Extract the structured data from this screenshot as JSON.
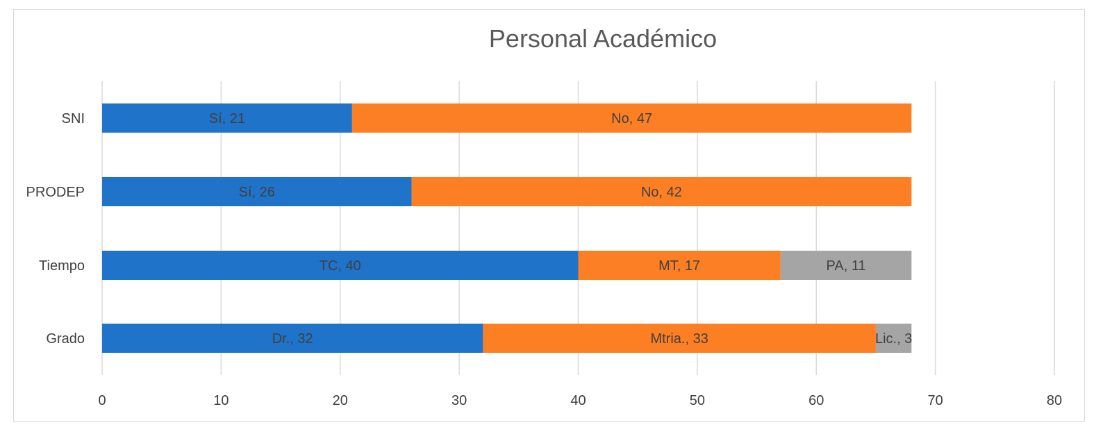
{
  "chart_data": {
    "type": "bar",
    "orientation": "horizontal",
    "stacked": true,
    "title": "Personal Académico",
    "xlabel": "",
    "ylabel": "",
    "xlim": [
      0,
      80
    ],
    "x_ticks": [
      0,
      10,
      20,
      30,
      40,
      50,
      60,
      70,
      80
    ],
    "grid": "vertical",
    "legend": "none",
    "colors": [
      "#1f73c8",
      "#fd7f24",
      "#a5a5a5"
    ],
    "categories": [
      "SNI",
      "PRODEP",
      "Tiempo",
      "Grado"
    ],
    "bars": [
      {
        "category": "SNI",
        "segments": [
          {
            "label": "Sí, 21",
            "value": 21
          },
          {
            "label": "No, 47",
            "value": 47
          }
        ]
      },
      {
        "category": "PRODEP",
        "segments": [
          {
            "label": "Sí, 26",
            "value": 26
          },
          {
            "label": "No, 42",
            "value": 42
          }
        ]
      },
      {
        "category": "Tiempo",
        "segments": [
          {
            "label": "TC, 40",
            "value": 40
          },
          {
            "label": "MT, 17",
            "value": 17
          },
          {
            "label": "PA, 11",
            "value": 11
          }
        ]
      },
      {
        "category": "Grado",
        "segments": [
          {
            "label": "Dr., 32",
            "value": 32
          },
          {
            "label": "Mtria., 33",
            "value": 33
          },
          {
            "label": "Lic., 3",
            "value": 3
          }
        ]
      }
    ]
  }
}
